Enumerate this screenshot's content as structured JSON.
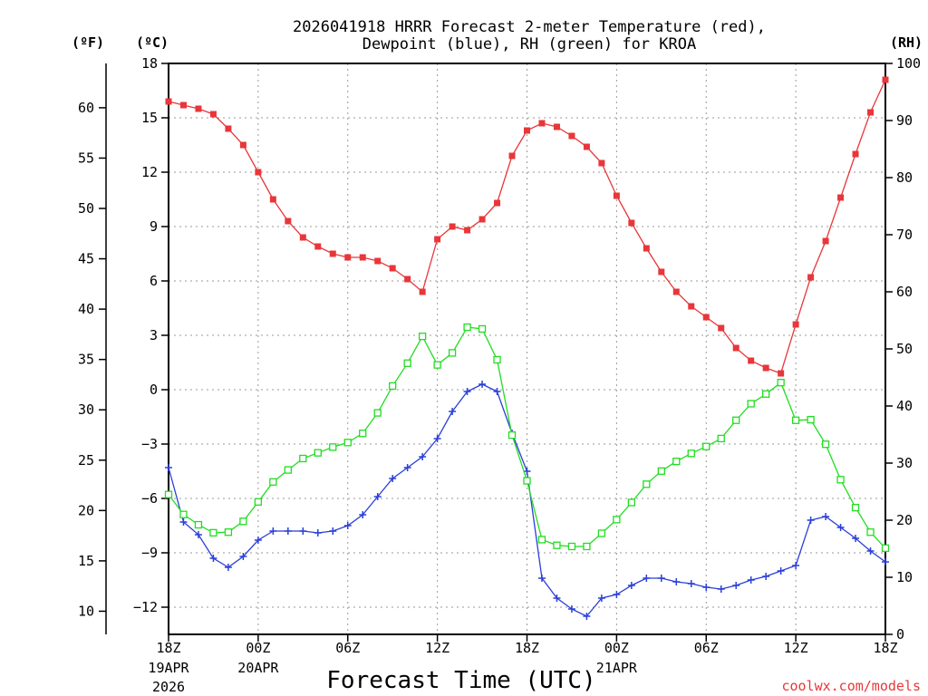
{
  "title_line1": "2026041918 HRRR Forecast 2-meter Temperature (red),",
  "title_line2": "Dewpoint (blue), RH (green) for KROA",
  "units": {
    "f": "(ºF)",
    "c": "(ºC)",
    "rh": "(RH)"
  },
  "xlabel": "Forecast Time (UTC)",
  "credit": "coolwx.com/models",
  "colors": {
    "temp": "#e8363a",
    "dewpoint": "#2a3fd8",
    "rh": "#22dd22"
  },
  "chart_data": {
    "type": "line",
    "title": "2026041918 HRRR Forecast 2-meter Temperature (red), Dewpoint (blue), RH (green) for KROA",
    "xlabel": "Forecast Time (UTC)",
    "x": [
      0,
      1,
      2,
      3,
      4,
      5,
      6,
      7,
      8,
      9,
      10,
      11,
      12,
      13,
      14,
      15,
      16,
      17,
      18,
      19,
      20,
      21,
      22,
      23,
      24,
      25,
      26,
      27,
      28,
      29,
      30,
      31,
      32,
      33,
      34,
      35,
      36,
      37,
      38,
      39,
      40,
      41,
      42,
      43,
      44,
      45,
      46,
      47,
      48
    ],
    "xlim": [
      0,
      48
    ],
    "x_ticks": [
      {
        "x": 0,
        "label": "18Z",
        "date": "19APR",
        "year": "2026"
      },
      {
        "x": 6,
        "label": "00Z",
        "date": "20APR"
      },
      {
        "x": 12,
        "label": "06Z"
      },
      {
        "x": 18,
        "label": "12Z"
      },
      {
        "x": 24,
        "label": "18Z"
      },
      {
        "x": 30,
        "label": "00Z",
        "date": "21APR"
      },
      {
        "x": 36,
        "label": "06Z"
      },
      {
        "x": 42,
        "label": "12Z"
      },
      {
        "x": 48,
        "label": "18Z"
      }
    ],
    "y_left_c": {
      "ylim": [
        -13.5,
        18
      ],
      "ticks": [
        18,
        15,
        12,
        9,
        6,
        3,
        0,
        -3,
        -6,
        -9,
        -12
      ],
      "tick_labels": [
        "18",
        "15",
        "12",
        "9",
        "6",
        "3",
        "0",
        "−3",
        "−6",
        "−9",
        "−12"
      ]
    },
    "y_left_f": {
      "ticks": [
        60,
        55,
        50,
        45,
        40,
        35,
        30,
        25,
        20,
        15,
        10
      ]
    },
    "y_right_rh": {
      "ylim": [
        0,
        100
      ],
      "ticks": [
        100,
        90,
        80,
        70,
        60,
        50,
        40,
        30,
        20,
        10,
        0
      ]
    },
    "series": [
      {
        "name": "2-meter Temperature (°C)",
        "color": "red",
        "marker": "filled-square",
        "axis": "c",
        "values": [
          15.9,
          15.7,
          15.5,
          15.2,
          14.4,
          13.5,
          12.0,
          10.5,
          9.3,
          8.4,
          7.9,
          7.5,
          7.3,
          7.3,
          7.1,
          6.7,
          6.1,
          5.4,
          8.3,
          9.0,
          8.8,
          9.4,
          10.3,
          12.9,
          14.3,
          14.7,
          14.5,
          14.0,
          13.4,
          12.5,
          10.7,
          9.2,
          7.8,
          6.5,
          5.4,
          4.6,
          4.0,
          3.4,
          2.3,
          1.6,
          1.2,
          0.9,
          3.6,
          6.2,
          8.2,
          10.6,
          13.0,
          15.3,
          17.1
        ]
      },
      {
        "name": "2-meter Dewpoint (°C)",
        "color": "blue",
        "marker": "plus",
        "axis": "c",
        "values": [
          -4.3,
          -7.3,
          -8.0,
          -9.3,
          -9.8,
          -9.2,
          -8.3,
          -7.8,
          -7.8,
          -7.8,
          -7.9,
          -7.8,
          -7.5,
          -6.9,
          -5.9,
          -4.9,
          -4.3,
          -3.7,
          -2.7,
          -1.2,
          -0.1,
          0.3,
          -0.1,
          -2.4,
          -4.5,
          -10.4,
          -11.5,
          -12.1,
          -12.5,
          -11.5,
          -11.3,
          -10.8,
          -10.4,
          -10.4,
          -10.6,
          -10.7,
          -10.9,
          -11.0,
          -10.8,
          -10.5,
          -10.3,
          -10.0,
          -9.7,
          -7.2,
          -7.0,
          -7.6,
          -8.2,
          -8.9,
          -9.5
        ]
      },
      {
        "name": "Relative Humidity (%)",
        "color": "green",
        "marker": "open-square",
        "axis": "rh",
        "values": [
          24.5,
          21.0,
          19.2,
          17.8,
          17.9,
          19.8,
          23.2,
          26.7,
          28.8,
          30.8,
          31.8,
          32.8,
          33.6,
          35.2,
          38.8,
          43.5,
          47.5,
          52.2,
          47.2,
          49.3,
          53.8,
          53.5,
          48.1,
          34.9,
          26.9,
          16.6,
          15.6,
          15.4,
          15.4,
          17.7,
          20.1,
          23.1,
          26.3,
          28.6,
          30.3,
          31.7,
          32.9,
          34.3,
          37.5,
          40.4,
          42.1,
          44.1,
          37.5,
          37.6,
          33.3,
          27.1,
          22.2,
          17.9,
          15.1
        ]
      }
    ]
  }
}
